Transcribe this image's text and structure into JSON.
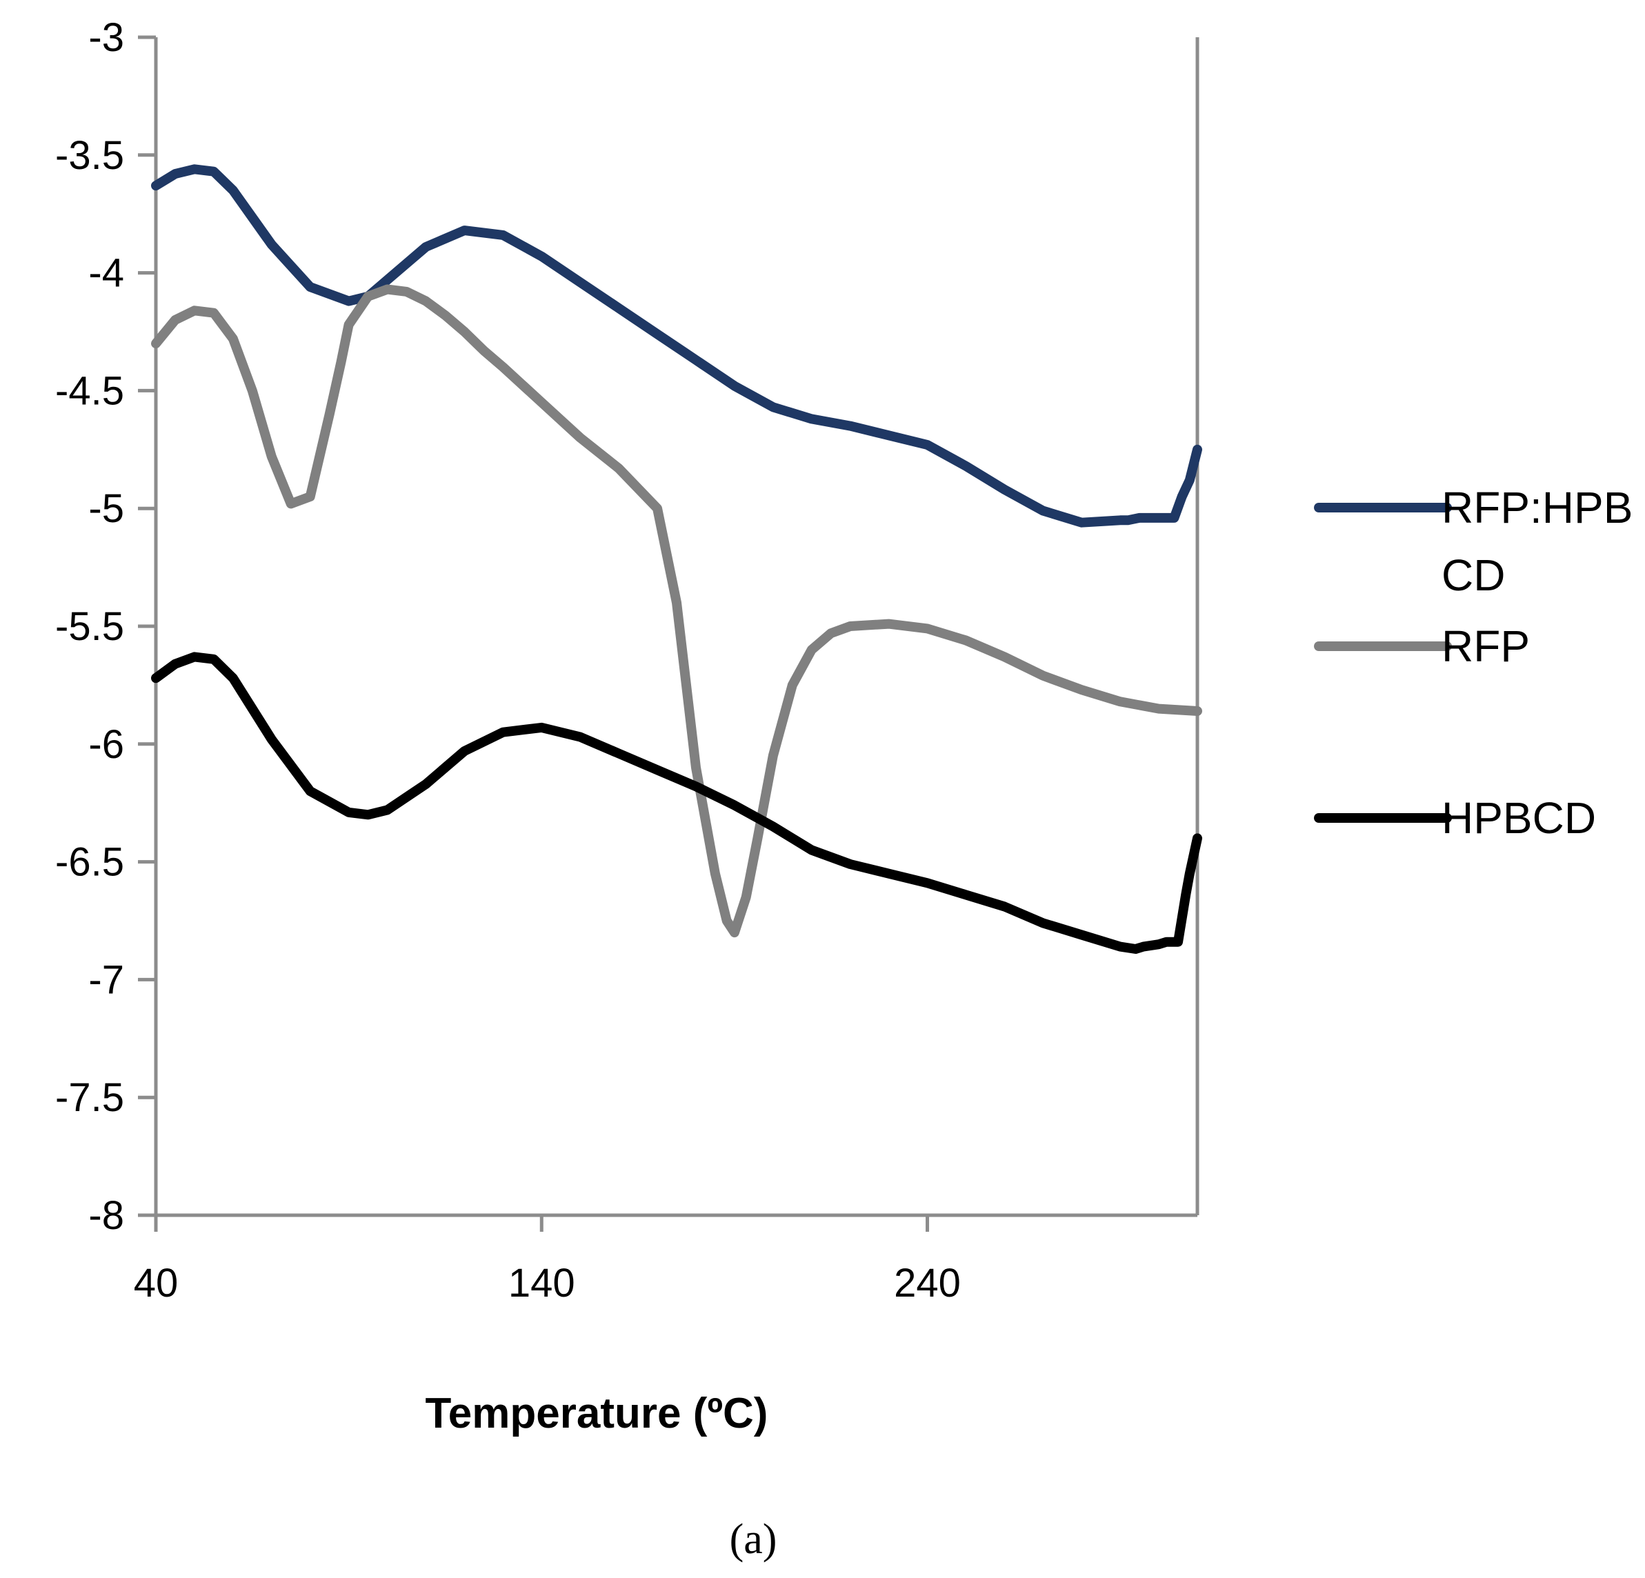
{
  "caption": "(a)",
  "chart_data": {
    "type": "line",
    "title": "",
    "xlabel": "Temperature (ºC)",
    "ylabel": "",
    "xlim": [
      40,
      310
    ],
    "ylim": [
      -8,
      -3
    ],
    "xticks": [
      40,
      140,
      240
    ],
    "xtick_labels": [
      "40",
      "140",
      "240"
    ],
    "yticks": [
      -3,
      -3.5,
      -4,
      -4.5,
      -5,
      -5.5,
      -6,
      -6.5,
      -7,
      -7.5,
      -8
    ],
    "ytick_labels": [
      "-3",
      "-3.5",
      "-4",
      "-4.5",
      "-5",
      "-5.5",
      "-6",
      "-6.5",
      "-7",
      "-7.5",
      "-8"
    ],
    "legend_position": "right",
    "series": [
      {
        "name": "RFP:HPBCD",
        "legend_lines": [
          "RFP:HPB",
          "CD"
        ],
        "color": "#1f3864",
        "x": [
          40,
          45,
          50,
          55,
          60,
          70,
          80,
          90,
          95,
          100,
          110,
          120,
          130,
          140,
          150,
          160,
          170,
          180,
          190,
          200,
          210,
          220,
          230,
          240,
          250,
          260,
          270,
          280,
          290,
          292,
          295,
          300,
          304,
          306,
          308,
          310
        ],
        "y": [
          -3.63,
          -3.58,
          -3.56,
          -3.57,
          -3.65,
          -3.88,
          -4.06,
          -4.12,
          -4.1,
          -4.03,
          -3.89,
          -3.82,
          -3.84,
          -3.93,
          -4.04,
          -4.15,
          -4.26,
          -4.37,
          -4.48,
          -4.57,
          -4.62,
          -4.65,
          -4.69,
          -4.73,
          -4.82,
          -4.92,
          -5.01,
          -5.06,
          -5.05,
          -5.05,
          -5.04,
          -5.04,
          -5.04,
          -4.95,
          -4.88,
          -4.75
        ]
      },
      {
        "name": "RFP",
        "legend_lines": [
          "RFP"
        ],
        "color": "#808080",
        "x": [
          40,
          45,
          50,
          55,
          60,
          65,
          70,
          75,
          80,
          85,
          88,
          90,
          95,
          100,
          105,
          110,
          115,
          120,
          125,
          130,
          140,
          150,
          160,
          170,
          175,
          180,
          185,
          188,
          190,
          193,
          196,
          200,
          205,
          210,
          215,
          220,
          230,
          240,
          250,
          260,
          270,
          280,
          290,
          300,
          310
        ],
        "y": [
          -4.3,
          -4.2,
          -4.16,
          -4.17,
          -4.28,
          -4.5,
          -4.78,
          -4.98,
          -4.95,
          -4.6,
          -4.38,
          -4.22,
          -4.1,
          -4.07,
          -4.08,
          -4.12,
          -4.18,
          -4.25,
          -4.33,
          -4.4,
          -4.55,
          -4.7,
          -4.83,
          -5.0,
          -5.4,
          -6.1,
          -6.55,
          -6.75,
          -6.8,
          -6.65,
          -6.4,
          -6.05,
          -5.75,
          -5.6,
          -5.53,
          -5.5,
          -5.49,
          -5.51,
          -5.56,
          -5.63,
          -5.71,
          -5.77,
          -5.82,
          -5.85,
          -5.86
        ]
      },
      {
        "name": "HPBCD",
        "legend_lines": [
          "HPBCD"
        ],
        "color": "#000000",
        "x": [
          40,
          45,
          50,
          55,
          60,
          70,
          80,
          90,
          95,
          100,
          110,
          120,
          130,
          140,
          150,
          160,
          170,
          180,
          190,
          200,
          210,
          220,
          230,
          240,
          250,
          260,
          270,
          280,
          290,
          294,
          296,
          300,
          302,
          305,
          306,
          307,
          308,
          310
        ],
        "y": [
          -5.72,
          -5.66,
          -5.63,
          -5.64,
          -5.72,
          -5.98,
          -6.2,
          -6.29,
          -6.3,
          -6.28,
          -6.17,
          -6.03,
          -5.95,
          -5.93,
          -5.97,
          -6.04,
          -6.11,
          -6.18,
          -6.26,
          -6.35,
          -6.45,
          -6.51,
          -6.55,
          -6.59,
          -6.64,
          -6.69,
          -6.76,
          -6.81,
          -6.86,
          -6.87,
          -6.86,
          -6.85,
          -6.84,
          -6.84,
          -6.74,
          -6.64,
          -6.55,
          -6.4
        ]
      }
    ]
  }
}
